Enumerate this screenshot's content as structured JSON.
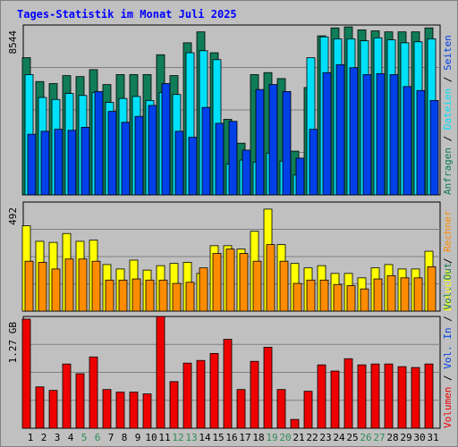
{
  "title": "Tages-Statistik im Monat Juli 2025",
  "colors": {
    "title": "#0000ff",
    "background": "#c0c0c0",
    "plot_bg": "#c0c0c0",
    "gridline": "#808080",
    "anfragen": "#107c58",
    "dateien": "#00e0f8",
    "seiten": "#0040e8",
    "besuche": "#ffff00",
    "rechner": "#ff8c00",
    "volumen": "#ee0000",
    "weekend": "#2e8b57",
    "weekday": "#000000",
    "legend_slash": "#000000"
  },
  "chart_data": [
    {
      "type": "bar",
      "panel": "top",
      "scale_label": "8544",
      "ylim": [
        0,
        8544
      ],
      "categories": [
        "1",
        "2",
        "3",
        "4",
        "5",
        "6",
        "7",
        "8",
        "9",
        "10",
        "11",
        "12",
        "13",
        "14",
        "15",
        "16",
        "17",
        "18",
        "19",
        "20",
        "21",
        "22",
        "23",
        "24",
        "25",
        "26",
        "27",
        "28",
        "29",
        "30",
        "31"
      ],
      "weekend_days": [
        "5",
        "6",
        "12",
        "13",
        "19",
        "20",
        "26",
        "27"
      ],
      "legend": [
        "Anfragen",
        "Dateien",
        "Seiten"
      ],
      "legend_colors": [
        "#107c58",
        "#00e0f8",
        "#0040e8"
      ],
      "series": [
        {
          "name": "Anfragen",
          "values": [
            6900,
            5700,
            5600,
            6000,
            5950,
            6300,
            5550,
            6050,
            6050,
            6050,
            7050,
            6000,
            7650,
            8200,
            7150,
            3800,
            2600,
            6050,
            6150,
            5850,
            2200,
            5400,
            8000,
            8400,
            8450,
            8300,
            8250,
            8200,
            8200,
            8200,
            8400
          ]
        },
        {
          "name": "Dateien",
          "values": [
            6050,
            4900,
            4800,
            5100,
            5000,
            5150,
            4650,
            4850,
            4950,
            4750,
            5150,
            5050,
            7150,
            7250,
            6800,
            1550,
            1750,
            1650,
            2100,
            1700,
            1000,
            6900,
            7950,
            7850,
            7850,
            7750,
            7900,
            7800,
            7650,
            7700,
            7850
          ]
        },
        {
          "name": "Seiten",
          "values": [
            3050,
            3200,
            3300,
            3250,
            3400,
            5200,
            4200,
            3650,
            3950,
            4500,
            5600,
            3200,
            2900,
            4400,
            3600,
            3700,
            2250,
            5300,
            5550,
            5200,
            1850,
            3300,
            6150,
            6550,
            6400,
            6050,
            6100,
            6050,
            5450,
            5250,
            4750
          ]
        }
      ]
    },
    {
      "type": "bar",
      "panel": "middle",
      "scale_label": "492",
      "ylim": [
        0,
        492
      ],
      "legend": [
        "Besuche",
        "Rechner"
      ],
      "legend_colors": [
        "#ffff00",
        "#ff8c00"
      ],
      "series": [
        {
          "name": "Besuche",
          "values": [
            385,
            315,
            310,
            350,
            315,
            320,
            210,
            190,
            230,
            185,
            205,
            215,
            220,
            170,
            295,
            295,
            280,
            360,
            460,
            300,
            215,
            195,
            205,
            170,
            170,
            150,
            195,
            210,
            190,
            190,
            270
          ]
        },
        {
          "name": "Rechner",
          "values": [
            225,
            220,
            190,
            235,
            235,
            225,
            140,
            140,
            145,
            140,
            140,
            125,
            130,
            195,
            260,
            280,
            260,
            225,
            300,
            225,
            125,
            140,
            140,
            120,
            115,
            100,
            145,
            160,
            150,
            150,
            200
          ]
        }
      ]
    },
    {
      "type": "bar",
      "panel": "bottom",
      "scale_label": "1.27 GB",
      "ylim": [
        0,
        1.27
      ],
      "legend": [
        "Volumen",
        "Vol. In",
        "Vol. Out"
      ],
      "legend_colors": [
        "#ee0000",
        "#0040e8",
        "#107c58"
      ],
      "series": [
        {
          "name": "Volumen",
          "values": [
            1.24,
            0.47,
            0.43,
            0.73,
            0.62,
            0.81,
            0.44,
            0.41,
            0.41,
            0.39,
            1.27,
            0.53,
            0.74,
            0.77,
            0.85,
            1.01,
            0.44,
            0.76,
            0.92,
            0.44,
            0.1,
            0.42,
            0.72,
            0.65,
            0.79,
            0.72,
            0.73,
            0.73,
            0.7,
            0.69,
            0.73
          ]
        }
      ]
    }
  ]
}
